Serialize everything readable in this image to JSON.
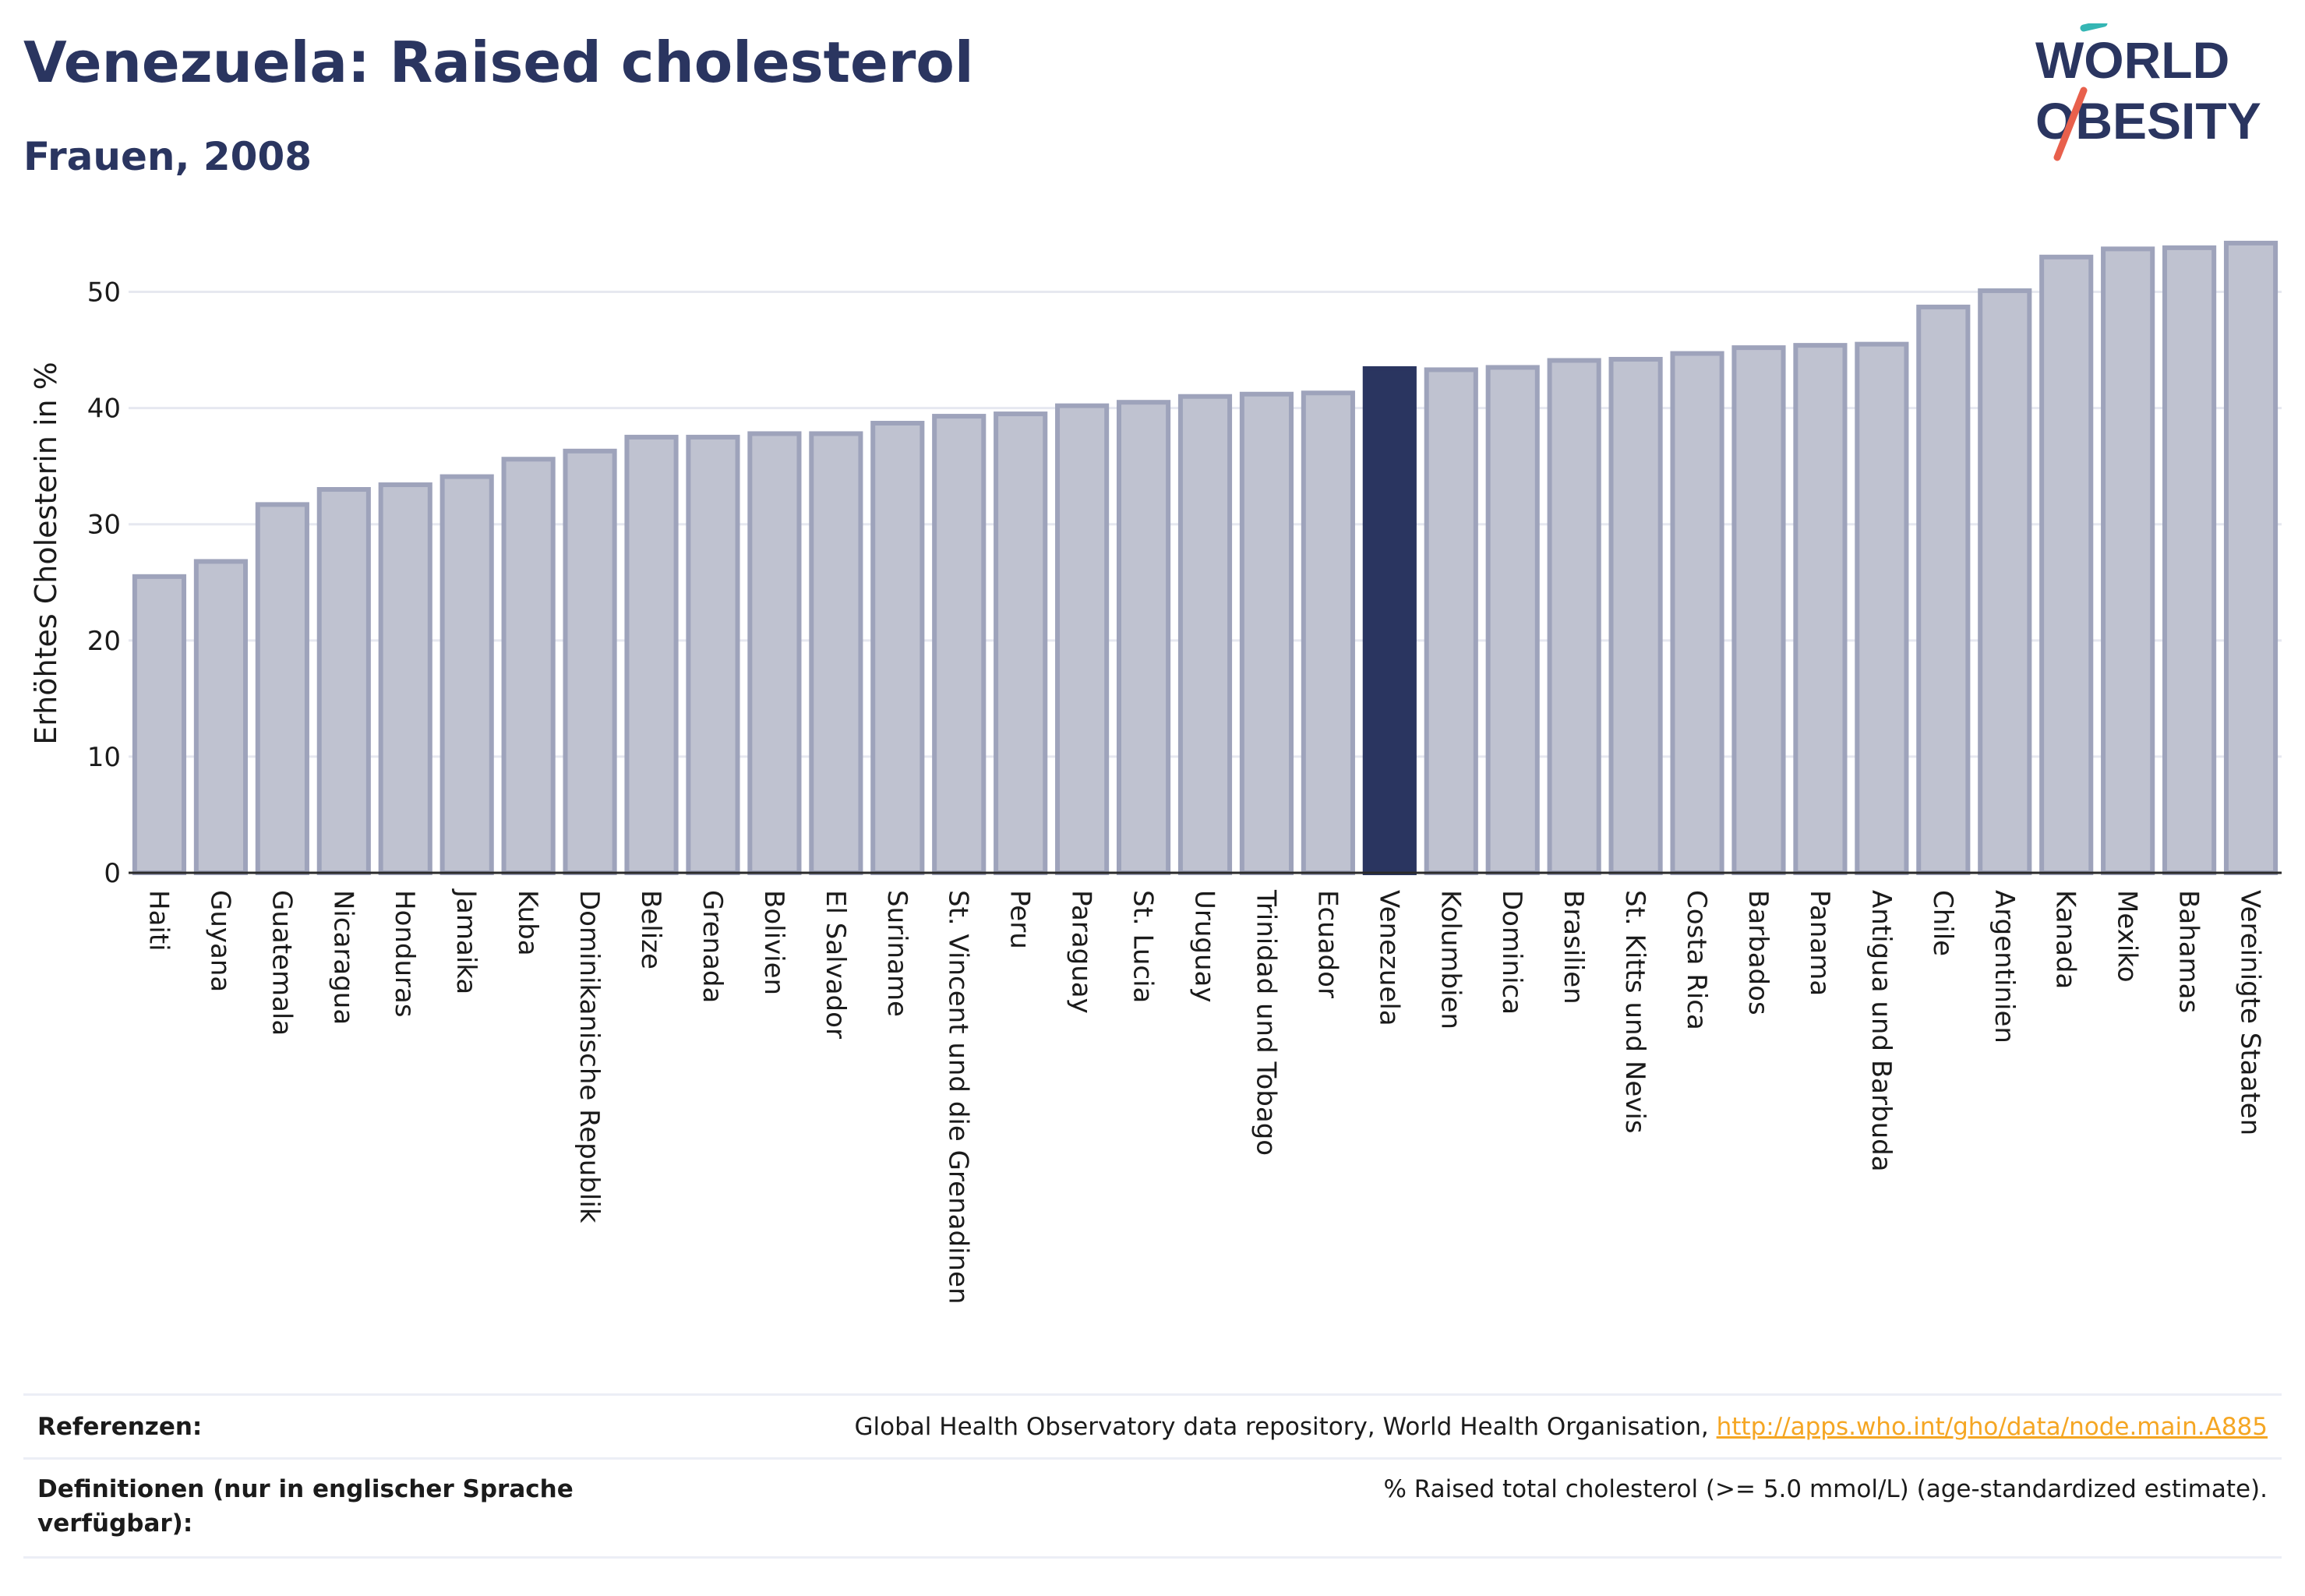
{
  "header": {
    "title": "Venezuela: Raised cholesterol",
    "subtitle": "Frauen, 2008"
  },
  "logo": {
    "line1": "WORLD",
    "line2": "OBESITY"
  },
  "colors": {
    "bar_fill": "#bfc2d0",
    "bar_stroke": "#9ea3bb",
    "highlight_fill": "#2a3560",
    "grid": "#e6e8f0",
    "text": "#2a3560",
    "link": "#f5a623",
    "logo_teal": "#35b6b4",
    "logo_red": "#e8604c"
  },
  "chart_data": {
    "type": "bar",
    "ylabel": "Erhöhtes Cholesterin in %",
    "xlabel": "",
    "ylim": [
      0,
      55
    ],
    "yticks": [
      0,
      10,
      20,
      30,
      40,
      50
    ],
    "grid": true,
    "highlight": "Venezuela",
    "categories": [
      "Haiti",
      "Guyana",
      "Guatemala",
      "Nicaragua",
      "Honduras",
      "Jamaika",
      "Kuba",
      "Dominikanische Republik",
      "Belize",
      "Grenada",
      "Bolivien",
      "El Salvador",
      "Suriname",
      "St. Vincent und die Grenadinen",
      "Peru",
      "Paraguay",
      "St. Lucia",
      "Uruguay",
      "Trinidad und Tobago",
      "Ecuador",
      "Venezuela",
      "Kolumbien",
      "Dominica",
      "Brasilien",
      "St. Kitts und Nevis",
      "Costa Rica",
      "Barbados",
      "Panama",
      "Antigua und Barbuda",
      "Chile",
      "Argentinien",
      "Kanada",
      "Mexiko",
      "Bahamas",
      "Vereinigte Staaten"
    ],
    "values": [
      25.5,
      26.8,
      31.7,
      33.0,
      33.4,
      34.1,
      35.6,
      36.3,
      37.5,
      37.5,
      37.8,
      37.8,
      38.7,
      39.3,
      39.5,
      40.2,
      40.5,
      41.0,
      41.2,
      41.3,
      43.4,
      43.3,
      43.5,
      44.1,
      44.2,
      44.7,
      45.2,
      45.4,
      45.5,
      48.7,
      50.1,
      53.0,
      53.7,
      53.8,
      54.2
    ]
  },
  "footer": {
    "references_label": "Referenzen:",
    "references_text": "Global Health Observatory data repository, World Health Organisation,",
    "references_link": "http://apps.who.int/gho/data/node.main.A885",
    "definitions_label": "Definitionen (nur in englischer Sprache verfügbar):",
    "definitions_text": "% Raised total cholesterol (>= 5.0 mmol/L) (age-standardized estimate)."
  }
}
